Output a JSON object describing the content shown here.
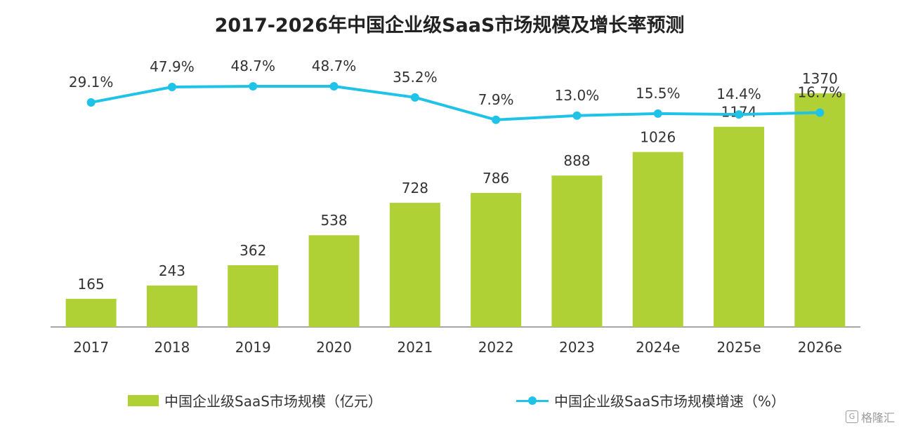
{
  "chart_data": {
    "type": "bar",
    "title": "2017-2026年中国企业级SaaS市场规模及增长率预测",
    "categories": [
      "2017",
      "2018",
      "2019",
      "2020",
      "2021",
      "2022",
      "2023",
      "2024e",
      "2025e",
      "2026e"
    ],
    "series": [
      {
        "name": "中国企业级SaaS市场规模（亿元）",
        "type": "bar",
        "values": [
          165,
          243,
          362,
          538,
          728,
          786,
          888,
          1026,
          1174,
          1370
        ],
        "labels": [
          "165",
          "243",
          "362",
          "538",
          "728",
          "786",
          "888",
          "1026",
          "1174",
          "1370"
        ]
      },
      {
        "name": "中国企业级SaaS市场规模增速（%）",
        "type": "line",
        "values": [
          29.1,
          47.9,
          48.7,
          48.7,
          35.2,
          7.9,
          13.0,
          15.5,
          14.4,
          16.7
        ],
        "labels": [
          "29.1%",
          "47.9%",
          "48.7%",
          "48.7%",
          "35.2%",
          "7.9%",
          "13.0%",
          "15.5%",
          "14.4%",
          "16.7%"
        ]
      }
    ],
    "ylim_bar": [
      0,
      1650
    ],
    "ylim_line": [
      0,
      150
    ],
    "xlabel": "",
    "ylabel": "",
    "grid": false,
    "legend_position": "bottom"
  },
  "colors": {
    "bar": "#b0d136",
    "line": "#1fc3e8",
    "axis": "#888888",
    "text": "#333333"
  },
  "watermark": {
    "icon": "gelonghui-logo-icon",
    "text": "格隆汇"
  }
}
